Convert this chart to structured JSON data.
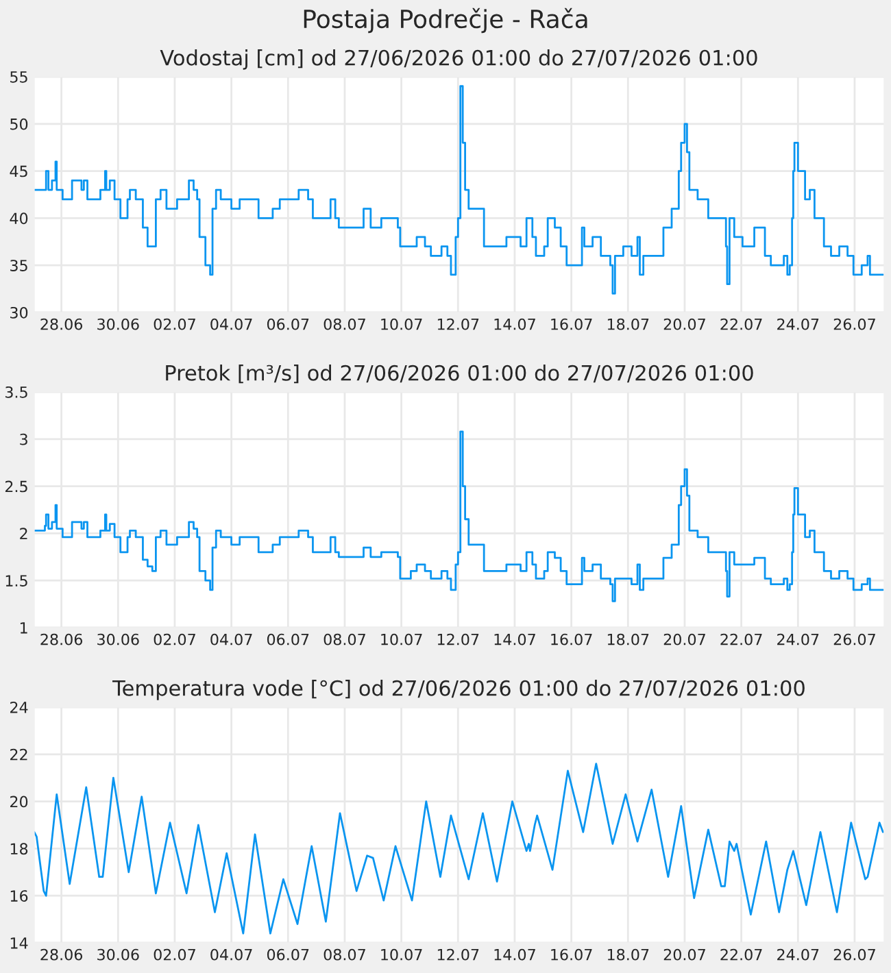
{
  "chart_data": [
    {
      "type": "step",
      "title": "Postaja Podrečje - Rača",
      "subtitle": "Vodostaj [cm] od 27/06/2026 01:00 do 27/07/2026 01:00",
      "grid": true,
      "legend": false,
      "xlim": [
        "2026-06-27T01:00",
        "2026-07-27T01:00"
      ],
      "xticks": [
        {
          "value": "2026-06-28",
          "label": "28.06"
        },
        {
          "value": "2026-06-30",
          "label": "30.06"
        },
        {
          "value": "2026-07-02",
          "label": "02.07"
        },
        {
          "value": "2026-07-04",
          "label": "04.07"
        },
        {
          "value": "2026-07-06",
          "label": "06.07"
        },
        {
          "value": "2026-07-08",
          "label": "08.07"
        },
        {
          "value": "2026-07-10",
          "label": "10.07"
        },
        {
          "value": "2026-07-12",
          "label": "12.07"
        },
        {
          "value": "2026-07-14",
          "label": "14.07"
        },
        {
          "value": "2026-07-16",
          "label": "16.07"
        },
        {
          "value": "2026-07-18",
          "label": "18.07"
        },
        {
          "value": "2026-07-20",
          "label": "20.07"
        },
        {
          "value": "2026-07-22",
          "label": "22.07"
        },
        {
          "value": "2026-07-24",
          "label": "24.07"
        },
        {
          "value": "2026-07-26",
          "label": "26.07"
        }
      ],
      "ylim": [
        30,
        55
      ],
      "yticks": [
        30,
        35,
        40,
        45,
        50,
        55
      ],
      "series": [
        {
          "color": "#0a95f0",
          "x": [
            "2026-06-27T01:00",
            "2026-06-27T10:00",
            "2026-06-27T11:00",
            "2026-06-27T13:00",
            "2026-06-27T16:00",
            "2026-06-27T19:00",
            "2026-06-27T20:00",
            "2026-06-28T01:00",
            "2026-06-28T08:00",
            "2026-06-28T09:00",
            "2026-06-28T15:00",
            "2026-06-28T17:00",
            "2026-06-28T19:00",
            "2026-06-28T22:00",
            "2026-06-29T03:00",
            "2026-06-29T09:00",
            "2026-06-29T13:00",
            "2026-06-29T14:00",
            "2026-06-29T17:00",
            "2026-06-29T21:00",
            "2026-06-30T02:00",
            "2026-06-30T05:00",
            "2026-06-30T08:00",
            "2026-06-30T10:00",
            "2026-06-30T15:00",
            "2026-06-30T21:00",
            "2026-07-01T01:00",
            "2026-07-01T05:00",
            "2026-07-01T08:00",
            "2026-07-01T12:00",
            "2026-07-01T17:00",
            "2026-07-02T02:00",
            "2026-07-02T12:00",
            "2026-07-02T16:00",
            "2026-07-02T19:00",
            "2026-07-02T21:00",
            "2026-07-03T02:00",
            "2026-07-03T06:00",
            "2026-07-03T08:00",
            "2026-07-03T11:00",
            "2026-07-03T15:00",
            "2026-07-04T00:00",
            "2026-07-04T07:00",
            "2026-07-04T17:00",
            "2026-07-04T23:00",
            "2026-07-05T05:00",
            "2026-07-05T11:00",
            "2026-07-05T17:00",
            "2026-07-06T05:00",
            "2026-07-06T09:00",
            "2026-07-06T17:00",
            "2026-07-06T21:00",
            "2026-07-07T07:00",
            "2026-07-07T12:00",
            "2026-07-07T16:00",
            "2026-07-07T19:00",
            "2026-07-08T10:00",
            "2026-07-08T16:00",
            "2026-07-08T22:00",
            "2026-07-09T07:00",
            "2026-07-09T21:00",
            "2026-07-09T23:00",
            "2026-07-10T08:00",
            "2026-07-10T13:00",
            "2026-07-10T20:00",
            "2026-07-11T01:00",
            "2026-07-11T10:00",
            "2026-07-11T15:00",
            "2026-07-11T18:00",
            "2026-07-11T22:00",
            "2026-07-12T00:00",
            "2026-07-12T02:00",
            "2026-07-12T04:00",
            "2026-07-12T06:00",
            "2026-07-12T09:00",
            "2026-07-12T15:00",
            "2026-07-12T22:00",
            "2026-07-13T12:00",
            "2026-07-13T17:00",
            "2026-07-14T00:00",
            "2026-07-14T05:00",
            "2026-07-14T10:00",
            "2026-07-14T15:00",
            "2026-07-14T18:00",
            "2026-07-15T01:00",
            "2026-07-15T04:00",
            "2026-07-15T10:00",
            "2026-07-15T15:00",
            "2026-07-15T20:00",
            "2026-07-16T04:00",
            "2026-07-16T09:00",
            "2026-07-16T11:00",
            "2026-07-16T18:00",
            "2026-07-17T01:00",
            "2026-07-17T09:00",
            "2026-07-17T11:00",
            "2026-07-17T13:00",
            "2026-07-17T20:00",
            "2026-07-18T03:00",
            "2026-07-18T08:00",
            "2026-07-18T10:00",
            "2026-07-18T13:00",
            "2026-07-18T20:00",
            "2026-07-19T06:00",
            "2026-07-19T13:00",
            "2026-07-19T17:00",
            "2026-07-19T19:00",
            "2026-07-19T21:00",
            "2026-07-20T00:00",
            "2026-07-20T02:00",
            "2026-07-20T04:00",
            "2026-07-20T11:00",
            "2026-07-20T20:00",
            "2026-07-21T07:00",
            "2026-07-21T11:00",
            "2026-07-21T12:00",
            "2026-07-21T14:00",
            "2026-07-21T18:00",
            "2026-07-22T01:00",
            "2026-07-22T11:00",
            "2026-07-22T20:00",
            "2026-07-23T01:00",
            "2026-07-23T12:00",
            "2026-07-23T15:00",
            "2026-07-23T17:00",
            "2026-07-23T19:00",
            "2026-07-23T20:00",
            "2026-07-23T21:00",
            "2026-07-24T00:00",
            "2026-07-24T06:00",
            "2026-07-24T10:00",
            "2026-07-24T14:00",
            "2026-07-24T22:00",
            "2026-07-25T04:00",
            "2026-07-25T11:00",
            "2026-07-25T18:00",
            "2026-07-25T23:00",
            "2026-07-26T06:00",
            "2026-07-26T11:00",
            "2026-07-26T13:00",
            "2026-07-27T00:00"
          ],
          "values": [
            43,
            43,
            45,
            43,
            44,
            46,
            43,
            42,
            42,
            44,
            44,
            43,
            44,
            42,
            42,
            43,
            45,
            43,
            44,
            42,
            40,
            40,
            42,
            43,
            42,
            39,
            37,
            37,
            42,
            43,
            41,
            42,
            44,
            43,
            42,
            38,
            35,
            34,
            41,
            43,
            42,
            41,
            42,
            42,
            40,
            40,
            41,
            42,
            42,
            43,
            42,
            40,
            40,
            42,
            40,
            39,
            39,
            41,
            39,
            40,
            39,
            37,
            37,
            38,
            37,
            36,
            37,
            36,
            34,
            38,
            40,
            54,
            48,
            43,
            41,
            41,
            37,
            37,
            38,
            38,
            37,
            40,
            38,
            36,
            37,
            40,
            39,
            37,
            35,
            35,
            39,
            37,
            38,
            36,
            35,
            32,
            36,
            37,
            36,
            38,
            34,
            36,
            36,
            39,
            41,
            41,
            45,
            48,
            50,
            47,
            43,
            42,
            40,
            40,
            37,
            33,
            40,
            38,
            37,
            39,
            36,
            35,
            36,
            34,
            35,
            40,
            45,
            48,
            45,
            42,
            43,
            40,
            37,
            36,
            37,
            36,
            34,
            35,
            36,
            34,
            34
          ]
        }
      ]
    },
    {
      "type": "step",
      "title": "Pretok [m³/s] od 27/06/2026 01:00 do 27/07/2026 01:00",
      "grid": true,
      "legend": false,
      "xlim": [
        "2026-06-27T01:00",
        "2026-07-27T01:00"
      ],
      "xticks": [
        {
          "value": "2026-06-28",
          "label": "28.06"
        },
        {
          "value": "2026-06-30",
          "label": "30.06"
        },
        {
          "value": "2026-07-02",
          "label": "02.07"
        },
        {
          "value": "2026-07-04",
          "label": "04.07"
        },
        {
          "value": "2026-07-06",
          "label": "06.07"
        },
        {
          "value": "2026-07-08",
          "label": "08.07"
        },
        {
          "value": "2026-07-10",
          "label": "10.07"
        },
        {
          "value": "2026-07-12",
          "label": "12.07"
        },
        {
          "value": "2026-07-14",
          "label": "14.07"
        },
        {
          "value": "2026-07-16",
          "label": "16.07"
        },
        {
          "value": "2026-07-18",
          "label": "18.07"
        },
        {
          "value": "2026-07-20",
          "label": "20.07"
        },
        {
          "value": "2026-07-22",
          "label": "22.07"
        },
        {
          "value": "2026-07-24",
          "label": "24.07"
        },
        {
          "value": "2026-07-26",
          "label": "26.07"
        }
      ],
      "ylim": [
        1,
        3.5
      ],
      "yticks": [
        1,
        1.5,
        2,
        2.5,
        3,
        3.5
      ],
      "series": [
        {
          "color": "#0a95f0",
          "x": [
            "2026-06-27T01:00",
            "2026-06-27T10:00",
            "2026-06-27T11:00",
            "2026-06-27T13:00",
            "2026-06-27T16:00",
            "2026-06-27T19:00",
            "2026-06-27T20:00",
            "2026-06-28T01:00",
            "2026-06-28T08:00",
            "2026-06-28T09:00",
            "2026-06-28T15:00",
            "2026-06-28T17:00",
            "2026-06-28T19:00",
            "2026-06-28T22:00",
            "2026-06-29T03:00",
            "2026-06-29T09:00",
            "2026-06-29T13:00",
            "2026-06-29T14:00",
            "2026-06-29T17:00",
            "2026-06-29T21:00",
            "2026-06-30T02:00",
            "2026-06-30T05:00",
            "2026-06-30T08:00",
            "2026-06-30T10:00",
            "2026-06-30T15:00",
            "2026-06-30T21:00",
            "2026-07-01T01:00",
            "2026-07-01T05:00",
            "2026-07-01T08:00",
            "2026-07-01T12:00",
            "2026-07-01T17:00",
            "2026-07-02T02:00",
            "2026-07-02T12:00",
            "2026-07-02T16:00",
            "2026-07-02T19:00",
            "2026-07-02T21:00",
            "2026-07-03T02:00",
            "2026-07-03T06:00",
            "2026-07-03T08:00",
            "2026-07-03T11:00",
            "2026-07-03T15:00",
            "2026-07-04T00:00",
            "2026-07-04T07:00",
            "2026-07-04T17:00",
            "2026-07-04T23:00",
            "2026-07-05T05:00",
            "2026-07-05T11:00",
            "2026-07-05T17:00",
            "2026-07-06T05:00",
            "2026-07-06T09:00",
            "2026-07-06T17:00",
            "2026-07-06T21:00",
            "2026-07-07T07:00",
            "2026-07-07T12:00",
            "2026-07-07T16:00",
            "2026-07-07T19:00",
            "2026-07-08T10:00",
            "2026-07-08T16:00",
            "2026-07-08T22:00",
            "2026-07-09T07:00",
            "2026-07-09T21:00",
            "2026-07-09T23:00",
            "2026-07-10T08:00",
            "2026-07-10T13:00",
            "2026-07-10T20:00",
            "2026-07-11T01:00",
            "2026-07-11T10:00",
            "2026-07-11T15:00",
            "2026-07-11T18:00",
            "2026-07-11T22:00",
            "2026-07-12T00:00",
            "2026-07-12T02:00",
            "2026-07-12T04:00",
            "2026-07-12T06:00",
            "2026-07-12T09:00",
            "2026-07-12T15:00",
            "2026-07-12T22:00",
            "2026-07-13T12:00",
            "2026-07-13T17:00",
            "2026-07-14T00:00",
            "2026-07-14T05:00",
            "2026-07-14T10:00",
            "2026-07-14T15:00",
            "2026-07-14T18:00",
            "2026-07-15T01:00",
            "2026-07-15T04:00",
            "2026-07-15T10:00",
            "2026-07-15T15:00",
            "2026-07-15T20:00",
            "2026-07-16T04:00",
            "2026-07-16T09:00",
            "2026-07-16T11:00",
            "2026-07-16T18:00",
            "2026-07-17T01:00",
            "2026-07-17T09:00",
            "2026-07-17T11:00",
            "2026-07-17T13:00",
            "2026-07-17T20:00",
            "2026-07-18T03:00",
            "2026-07-18T08:00",
            "2026-07-18T10:00",
            "2026-07-18T13:00",
            "2026-07-18T20:00",
            "2026-07-19T06:00",
            "2026-07-19T13:00",
            "2026-07-19T17:00",
            "2026-07-19T19:00",
            "2026-07-19T21:00",
            "2026-07-20T00:00",
            "2026-07-20T02:00",
            "2026-07-20T04:00",
            "2026-07-20T11:00",
            "2026-07-20T20:00",
            "2026-07-21T07:00",
            "2026-07-21T11:00",
            "2026-07-21T12:00",
            "2026-07-21T14:00",
            "2026-07-21T18:00",
            "2026-07-22T01:00",
            "2026-07-22T11:00",
            "2026-07-22T20:00",
            "2026-07-23T01:00",
            "2026-07-23T12:00",
            "2026-07-23T15:00",
            "2026-07-23T17:00",
            "2026-07-23T19:00",
            "2026-07-23T20:00",
            "2026-07-23T21:00",
            "2026-07-24T00:00",
            "2026-07-24T06:00",
            "2026-07-24T10:00",
            "2026-07-24T14:00",
            "2026-07-24T22:00",
            "2026-07-25T04:00",
            "2026-07-25T11:00",
            "2026-07-25T18:00",
            "2026-07-25T23:00",
            "2026-07-26T06:00",
            "2026-07-26T11:00",
            "2026-07-26T13:00",
            "2026-07-27T00:00"
          ],
          "values": [
            2.03,
            2.08,
            2.2,
            2.05,
            2.12,
            2.3,
            2.05,
            1.96,
            1.96,
            2.12,
            2.12,
            2.05,
            2.12,
            1.96,
            1.96,
            2.03,
            2.2,
            2.03,
            2.1,
            1.96,
            1.8,
            1.8,
            1.96,
            2.03,
            1.96,
            1.72,
            1.65,
            1.6,
            1.96,
            2.03,
            1.88,
            1.96,
            2.12,
            2.05,
            1.96,
            1.6,
            1.5,
            1.4,
            1.85,
            2.03,
            1.96,
            1.88,
            1.96,
            1.96,
            1.8,
            1.8,
            1.88,
            1.96,
            1.96,
            2.03,
            1.96,
            1.8,
            1.8,
            1.96,
            1.8,
            1.75,
            1.75,
            1.85,
            1.75,
            1.8,
            1.75,
            1.52,
            1.6,
            1.67,
            1.6,
            1.52,
            1.6,
            1.52,
            1.4,
            1.67,
            1.8,
            3.08,
            2.5,
            2.15,
            1.88,
            1.88,
            1.6,
            1.6,
            1.67,
            1.67,
            1.6,
            1.8,
            1.67,
            1.52,
            1.6,
            1.8,
            1.74,
            1.6,
            1.46,
            1.46,
            1.74,
            1.6,
            1.67,
            1.52,
            1.46,
            1.28,
            1.52,
            1.52,
            1.46,
            1.67,
            1.4,
            1.52,
            1.52,
            1.74,
            1.88,
            1.88,
            2.3,
            2.5,
            2.68,
            2.4,
            2.03,
            1.96,
            1.8,
            1.8,
            1.6,
            1.33,
            1.8,
            1.67,
            1.67,
            1.74,
            1.52,
            1.46,
            1.52,
            1.4,
            1.46,
            1.8,
            2.2,
            2.48,
            2.2,
            1.96,
            2.03,
            1.8,
            1.6,
            1.52,
            1.6,
            1.52,
            1.4,
            1.46,
            1.52,
            1.4,
            1.4
          ]
        }
      ]
    },
    {
      "type": "line",
      "title": "Temperatura vode [°C] od 27/06/2026 01:00 do 27/07/2026 01:00",
      "grid": true,
      "legend": false,
      "xlim": [
        "2026-06-27T01:00",
        "2026-07-27T01:00"
      ],
      "xticks": [
        {
          "value": "2026-06-28",
          "label": "28.06"
        },
        {
          "value": "2026-06-30",
          "label": "30.06"
        },
        {
          "value": "2026-07-02",
          "label": "02.07"
        },
        {
          "value": "2026-07-04",
          "label": "04.07"
        },
        {
          "value": "2026-07-06",
          "label": "06.07"
        },
        {
          "value": "2026-07-08",
          "label": "08.07"
        },
        {
          "value": "2026-07-10",
          "label": "10.07"
        },
        {
          "value": "2026-07-12",
          "label": "12.07"
        },
        {
          "value": "2026-07-14",
          "label": "14.07"
        },
        {
          "value": "2026-07-16",
          "label": "16.07"
        },
        {
          "value": "2026-07-18",
          "label": "18.07"
        },
        {
          "value": "2026-07-20",
          "label": "20.07"
        },
        {
          "value": "2026-07-22",
          "label": "22.07"
        },
        {
          "value": "2026-07-24",
          "label": "24.07"
        },
        {
          "value": "2026-07-26",
          "label": "26.07"
        }
      ],
      "ylim": [
        14,
        24
      ],
      "yticks": [
        14,
        16,
        18,
        20,
        22,
        24
      ],
      "series": [
        {
          "color": "#0a95f0",
          "x": [
            "2026-06-27T01:00",
            "2026-06-27T03:00",
            "2026-06-27T09:00",
            "2026-06-27T11:00",
            "2026-06-27T20:00",
            "2026-06-28T07:00",
            "2026-06-28T21:00",
            "2026-06-29T08:00",
            "2026-06-29T11:00",
            "2026-06-29T20:00",
            "2026-06-30T09:00",
            "2026-06-30T20:00",
            "2026-07-01T08:00",
            "2026-07-01T20:00",
            "2026-07-02T10:00",
            "2026-07-02T20:00",
            "2026-07-03T10:00",
            "2026-07-03T20:00",
            "2026-07-04T10:00",
            "2026-07-04T20:00",
            "2026-07-05T09:00",
            "2026-07-05T20:00",
            "2026-07-06T08:00",
            "2026-07-06T20:00",
            "2026-07-07T08:00",
            "2026-07-07T20:00",
            "2026-07-08T10:00",
            "2026-07-08T19:00",
            "2026-07-09T00:00",
            "2026-07-09T09:00",
            "2026-07-09T19:00",
            "2026-07-10T09:00",
            "2026-07-10T21:00",
            "2026-07-11T09:00",
            "2026-07-11T18:00",
            "2026-07-12T09:00",
            "2026-07-12T21:00",
            "2026-07-13T09:00",
            "2026-07-13T22:00",
            "2026-07-14T10:00",
            "2026-07-14T12:00",
            "2026-07-14T13:00",
            "2026-07-14T17:00",
            "2026-07-14T19:00",
            "2026-07-15T08:00",
            "2026-07-15T21:00",
            "2026-07-16T10:00",
            "2026-07-16T21:00",
            "2026-07-17T11:00",
            "2026-07-17T22:00",
            "2026-07-18T08:00",
            "2026-07-18T20:00",
            "2026-07-19T10:00",
            "2026-07-19T21:00",
            "2026-07-20T08:00",
            "2026-07-20T20:00",
            "2026-07-21T07:00",
            "2026-07-21T10:00",
            "2026-07-21T14:00",
            "2026-07-21T18:00",
            "2026-07-21T20:00",
            "2026-07-22T08:00",
            "2026-07-22T21:00",
            "2026-07-23T08:00",
            "2026-07-23T15:00",
            "2026-07-23T20:00",
            "2026-07-24T07:00",
            "2026-07-24T19:00",
            "2026-07-25T09:00",
            "2026-07-25T21:00",
            "2026-07-26T09:00",
            "2026-07-26T11:00",
            "2026-07-26T21:00",
            "2026-07-27T00:00"
          ],
          "values": [
            18.7,
            18.5,
            16.2,
            16.0,
            20.3,
            16.5,
            20.6,
            16.8,
            16.8,
            21.0,
            17.0,
            20.2,
            16.1,
            19.1,
            16.1,
            19.0,
            15.3,
            17.8,
            14.4,
            18.6,
            14.4,
            16.7,
            14.8,
            18.1,
            14.9,
            19.5,
            16.2,
            17.7,
            17.6,
            15.8,
            18.1,
            15.8,
            20.0,
            16.8,
            19.4,
            16.7,
            19.5,
            16.6,
            20.0,
            17.9,
            18.2,
            17.9,
            19.0,
            19.4,
            17.1,
            21.3,
            18.7,
            21.6,
            18.2,
            20.3,
            18.3,
            20.5,
            16.8,
            19.8,
            15.9,
            18.8,
            16.4,
            16.4,
            18.3,
            17.9,
            18.2,
            15.2,
            18.3,
            15.3,
            17.1,
            17.9,
            15.6,
            18.7,
            15.3,
            19.1,
            16.7,
            16.8,
            19.1,
            18.7
          ]
        }
      ]
    }
  ]
}
